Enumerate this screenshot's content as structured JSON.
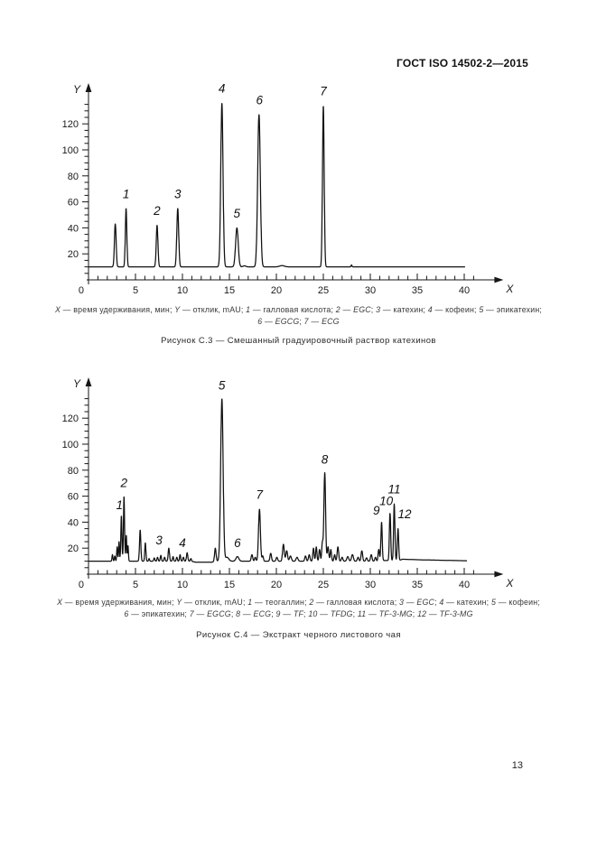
{
  "page": {
    "header": "ГОСТ ISO 14502-2—2015",
    "page_number": "13"
  },
  "figures": [
    {
      "title": "Рисунок С.3 — Смешанный градуировочный раствор катехинов",
      "caption_lines": [
        [
          {
            "t": "X",
            "i": 1
          },
          {
            "t": " — время удерживания, мин; "
          },
          {
            "t": "Y",
            "i": 1
          },
          {
            "t": " — отклик, mAU; "
          },
          {
            "t": "1",
            "i": 1
          },
          {
            "t": " — галловая кислота; "
          },
          {
            "t": "2",
            "i": 1
          },
          {
            "t": " — "
          },
          {
            "t": "EGC",
            "i": 1
          },
          {
            "t": "; "
          },
          {
            "t": "3",
            "i": 1
          },
          {
            "t": " — катехин; "
          },
          {
            "t": "4",
            "i": 1
          },
          {
            "t": " — кофеин; "
          },
          {
            "t": "5",
            "i": 1
          },
          {
            "t": " — эпикатехин;"
          }
        ],
        [
          {
            "t": "6",
            "i": 1
          },
          {
            "t": " — "
          },
          {
            "t": "EGCG",
            "i": 1
          },
          {
            "t": "; "
          },
          {
            "t": "7",
            "i": 1
          },
          {
            "t": " — "
          },
          {
            "t": "ECG",
            "i": 1
          }
        ]
      ]
    },
    {
      "title": "Рисунок С.4 — Экстракт черного листового чая",
      "caption_lines": [
        [
          {
            "t": "X",
            "i": 1
          },
          {
            "t": " — время удерживания, мин; "
          },
          {
            "t": "Y",
            "i": 1
          },
          {
            "t": " — отклик, mAU; "
          },
          {
            "t": "1",
            "i": 1
          },
          {
            "t": " — теогаллин; "
          },
          {
            "t": "2",
            "i": 1
          },
          {
            "t": " — галловая кислота; "
          },
          {
            "t": "3",
            "i": 1
          },
          {
            "t": " — "
          },
          {
            "t": "EGC",
            "i": 1
          },
          {
            "t": "; "
          },
          {
            "t": "4",
            "i": 1
          },
          {
            "t": " — катехин; "
          },
          {
            "t": "5",
            "i": 1
          },
          {
            "t": " — кофеин;"
          }
        ],
        [
          {
            "t": "6",
            "i": 1
          },
          {
            "t": " — эпикатехин; "
          },
          {
            "t": "7",
            "i": 1
          },
          {
            "t": " — "
          },
          {
            "t": "EGCG",
            "i": 1
          },
          {
            "t": "; "
          },
          {
            "t": "8",
            "i": 1
          },
          {
            "t": " — "
          },
          {
            "t": "ECG",
            "i": 1
          },
          {
            "t": "; "
          },
          {
            "t": "9",
            "i": 1
          },
          {
            "t": " — "
          },
          {
            "t": "TF",
            "i": 1
          },
          {
            "t": "; "
          },
          {
            "t": "10",
            "i": 1
          },
          {
            "t": " — "
          },
          {
            "t": "TFDG",
            "i": 1
          },
          {
            "t": "; "
          },
          {
            "t": "11",
            "i": 1
          },
          {
            "t": " — "
          },
          {
            "t": "TF-3-MG",
            "i": 1
          },
          {
            "t": "; "
          },
          {
            "t": "12",
            "i": 1
          },
          {
            "t": " — "
          },
          {
            "t": "TF-3-MG",
            "i": 1
          }
        ]
      ]
    }
  ],
  "chart_data": [
    {
      "type": "line",
      "kind": "chromatogram",
      "title": "Смешанный градуировочный раствор катехинов",
      "xlabel": "X",
      "ylabel": "Y",
      "x_unit": "время удерживания, мин",
      "y_unit": "отклик, mAU",
      "xlim": [
        0,
        41
      ],
      "ylim": [
        0,
        145
      ],
      "x_tick_labels": [
        5,
        10,
        15,
        20,
        25,
        30,
        35,
        40
      ],
      "y_tick_labels": [
        20,
        40,
        60,
        80,
        100,
        120
      ],
      "x_start": 0.05,
      "x_end": 40.1,
      "base_points": [
        [
          0,
          10
        ],
        [
          40.1,
          10
        ]
      ],
      "peaks_note": "each peak = [retention_time_min, apex_mAU, sigma_min]",
      "peaks": [
        [
          2.85,
          43,
          0.09
        ],
        [
          4.0,
          55,
          0.08
        ],
        [
          7.3,
          42,
          0.09
        ],
        [
          9.5,
          55,
          0.1
        ],
        [
          14.2,
          136,
          0.12
        ],
        [
          15.8,
          40,
          0.14
        ],
        [
          16.6,
          10.8,
          0.15
        ],
        [
          18.15,
          127,
          0.14
        ],
        [
          20.6,
          11,
          0.25
        ],
        [
          25.0,
          134,
          0.09
        ],
        [
          28.0,
          11.5,
          0.05
        ]
      ],
      "annotations": [
        {
          "label": "1",
          "x": 4.0,
          "y": 63
        },
        {
          "label": "2",
          "x": 7.3,
          "y": 50
        },
        {
          "label": "3",
          "x": 9.5,
          "y": 63
        },
        {
          "label": "4",
          "x": 14.2,
          "y": 144
        },
        {
          "label": "5",
          "x": 15.8,
          "y": 48
        },
        {
          "label": "6",
          "x": 18.2,
          "y": 135
        },
        {
          "label": "7",
          "x": 25.0,
          "y": 142
        }
      ],
      "peak_assignments": {
        "1": "галловая кислота",
        "2": "EGC",
        "3": "катехин",
        "4": "кофеин",
        "5": "эпикатехин",
        "6": "EGCG",
        "7": "ECG"
      }
    },
    {
      "type": "line",
      "kind": "chromatogram",
      "title": "Экстракт черного листового чая",
      "xlabel": "X",
      "ylabel": "Y",
      "x_unit": "время удерживания, мин",
      "y_unit": "отклик, mAU",
      "xlim": [
        0,
        41
      ],
      "ylim": [
        0,
        145
      ],
      "x_tick_labels": [
        5,
        10,
        15,
        20,
        25,
        30,
        35,
        40
      ],
      "y_tick_labels": [
        20,
        40,
        60,
        80,
        100,
        120
      ],
      "x_start": 0.05,
      "x_end": 40.3,
      "base_points": [
        [
          0,
          10
        ],
        [
          10.9,
          10
        ],
        [
          11.4,
          9.2
        ],
        [
          13.1,
          9.2
        ],
        [
          13.7,
          10
        ],
        [
          30.8,
          10
        ],
        [
          31.0,
          10.5
        ],
        [
          33.1,
          10.5
        ],
        [
          33.4,
          11.5
        ],
        [
          35.5,
          11
        ],
        [
          40.3,
          10.3
        ]
      ],
      "peaks_note": "each peak = [retention_time_min, apex_mAU, sigma_min]",
      "peaks": [
        [
          2.55,
          15,
          0.05
        ],
        [
          2.8,
          14,
          0.05
        ],
        [
          3.05,
          21,
          0.05
        ],
        [
          3.25,
          25,
          0.05
        ],
        [
          3.5,
          45,
          0.06
        ],
        [
          3.78,
          60,
          0.06
        ],
        [
          4.02,
          30,
          0.05
        ],
        [
          4.2,
          22,
          0.05
        ],
        [
          5.5,
          34,
          0.07
        ],
        [
          6.05,
          24,
          0.06
        ],
        [
          6.45,
          12,
          0.05
        ],
        [
          7.0,
          12.5,
          0.06
        ],
        [
          7.35,
          13,
          0.06
        ],
        [
          7.7,
          14.5,
          0.06
        ],
        [
          8.1,
          13,
          0.06
        ],
        [
          8.55,
          20,
          0.07
        ],
        [
          9.0,
          13.5,
          0.06
        ],
        [
          9.4,
          13,
          0.06
        ],
        [
          9.75,
          15,
          0.06
        ],
        [
          10.1,
          13,
          0.06
        ],
        [
          10.5,
          16.5,
          0.07
        ],
        [
          10.9,
          12,
          0.06
        ],
        [
          13.5,
          20,
          0.08
        ],
        [
          14.2,
          135,
          0.13
        ],
        [
          14.75,
          13,
          0.18
        ],
        [
          15.85,
          13.5,
          0.15
        ],
        [
          17.4,
          15,
          0.08
        ],
        [
          17.75,
          13,
          0.07
        ],
        [
          18.2,
          50,
          0.1
        ],
        [
          18.55,
          14,
          0.07
        ],
        [
          19.4,
          16,
          0.08
        ],
        [
          20.05,
          13,
          0.08
        ],
        [
          20.75,
          23,
          0.09
        ],
        [
          21.1,
          18,
          0.09
        ],
        [
          21.5,
          14,
          0.1
        ],
        [
          22.2,
          13,
          0.1
        ],
        [
          23.1,
          14,
          0.08
        ],
        [
          23.5,
          15,
          0.08
        ],
        [
          23.95,
          20,
          0.07
        ],
        [
          24.25,
          21,
          0.07
        ],
        [
          24.6,
          19,
          0.07
        ],
        [
          24.9,
          24,
          0.07
        ],
        [
          25.15,
          78,
          0.09
        ],
        [
          25.5,
          21,
          0.08
        ],
        [
          25.8,
          19,
          0.07
        ],
        [
          26.2,
          15,
          0.07
        ],
        [
          26.55,
          21,
          0.08
        ],
        [
          27.0,
          13,
          0.08
        ],
        [
          27.6,
          13.5,
          0.1
        ],
        [
          28.1,
          15,
          0.1
        ],
        [
          28.7,
          13,
          0.08
        ],
        [
          29.1,
          18,
          0.08
        ],
        [
          29.6,
          12.5,
          0.08
        ],
        [
          30.1,
          15,
          0.08
        ],
        [
          30.55,
          13,
          0.07
        ],
        [
          30.9,
          19,
          0.07
        ],
        [
          31.2,
          40,
          0.07
        ],
        [
          32.1,
          47,
          0.07
        ],
        [
          32.55,
          54,
          0.07
        ],
        [
          32.95,
          35,
          0.07
        ]
      ],
      "annotations": [
        {
          "label": "1",
          "x": 3.3,
          "y": 50
        },
        {
          "label": "2",
          "x": 3.78,
          "y": 67
        },
        {
          "label": "3",
          "x": 7.5,
          "y": 23
        },
        {
          "label": "4",
          "x": 10.0,
          "y": 21
        },
        {
          "label": "5",
          "x": 14.2,
          "y": 142
        },
        {
          "label": "6",
          "x": 15.85,
          "y": 21
        },
        {
          "label": "7",
          "x": 18.2,
          "y": 58
        },
        {
          "label": "8",
          "x": 25.15,
          "y": 85
        },
        {
          "label": "9",
          "x": 30.65,
          "y": 46
        },
        {
          "label": "10",
          "x": 31.7,
          "y": 53
        },
        {
          "label": "11",
          "x": 32.55,
          "y": 62
        },
        {
          "label": "12",
          "x": 33.65,
          "y": 43
        }
      ],
      "peak_assignments": {
        "1": "теогаллин",
        "2": "галловая кислота",
        "3": "EGC",
        "4": "катехин",
        "5": "кофеин",
        "6": "эпикатехин",
        "7": "EGCG",
        "8": "ECG",
        "9": "TF",
        "10": "TFDG",
        "11": "TF-3-MG",
        "12": "TF-3-MG"
      }
    }
  ]
}
